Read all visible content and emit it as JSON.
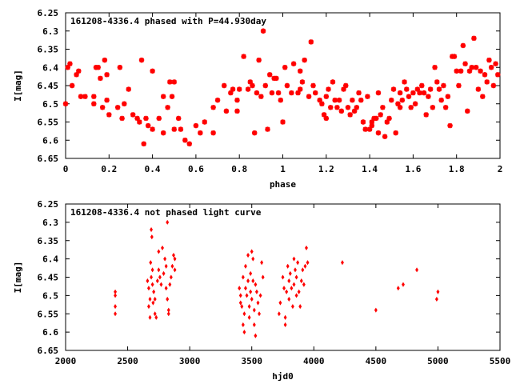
{
  "chart_data": [
    {
      "type": "scatter",
      "title": "161208-4336.4 phased with P=44.930day",
      "xlabel": "phase",
      "ylabel": "I[mag]",
      "xlim": [
        0,
        2
      ],
      "ylim": [
        6.25,
        6.65
      ],
      "y_inverted": true,
      "xticks": [
        "0",
        "0.2",
        "0.4",
        "0.6",
        "0.8",
        "1",
        "1.2",
        "1.4",
        "1.6",
        "1.8",
        "2"
      ],
      "yticks": [
        "6.25",
        "6.3",
        "6.35",
        "6.4",
        "6.45",
        "6.5",
        "6.55",
        "6.6",
        "6.65"
      ],
      "marker": "star",
      "color": "#ff0000",
      "points": [
        [
          0.0,
          6.5
        ],
        [
          0.01,
          6.4
        ],
        [
          0.02,
          6.39
        ],
        [
          0.03,
          6.45
        ],
        [
          0.05,
          6.42
        ],
        [
          0.06,
          6.41
        ],
        [
          0.07,
          6.48
        ],
        [
          0.09,
          6.48
        ],
        [
          0.13,
          6.5
        ],
        [
          0.13,
          6.48
        ],
        [
          0.14,
          6.4
        ],
        [
          0.15,
          6.4
        ],
        [
          0.16,
          6.43
        ],
        [
          0.17,
          6.51
        ],
        [
          0.18,
          6.38
        ],
        [
          0.19,
          6.42
        ],
        [
          0.19,
          6.49
        ],
        [
          0.2,
          6.53
        ],
        [
          0.24,
          6.51
        ],
        [
          0.25,
          6.4
        ],
        [
          0.26,
          6.54
        ],
        [
          0.27,
          6.5
        ],
        [
          0.29,
          6.46
        ],
        [
          0.31,
          6.53
        ],
        [
          0.33,
          6.54
        ],
        [
          0.34,
          6.55
        ],
        [
          0.35,
          6.38
        ],
        [
          0.36,
          6.61
        ],
        [
          0.37,
          6.54
        ],
        [
          0.38,
          6.56
        ],
        [
          0.4,
          6.57
        ],
        [
          0.4,
          6.41
        ],
        [
          0.43,
          6.54
        ],
        [
          0.45,
          6.58
        ],
        [
          0.45,
          6.48
        ],
        [
          0.47,
          6.51
        ],
        [
          0.48,
          6.44
        ],
        [
          0.49,
          6.48
        ],
        [
          0.5,
          6.44
        ],
        [
          0.5,
          6.57
        ],
        [
          0.52,
          6.54
        ],
        [
          0.53,
          6.57
        ],
        [
          0.55,
          6.6
        ],
        [
          0.57,
          6.61
        ],
        [
          0.6,
          6.56
        ],
        [
          0.62,
          6.58
        ],
        [
          0.64,
          6.55
        ],
        [
          0.68,
          6.58
        ],
        [
          0.68,
          6.51
        ],
        [
          0.7,
          6.49
        ],
        [
          0.73,
          6.45
        ],
        [
          0.74,
          6.52
        ],
        [
          0.76,
          6.47
        ],
        [
          0.77,
          6.46
        ],
        [
          0.79,
          6.49
        ],
        [
          0.79,
          6.52
        ],
        [
          0.8,
          6.46
        ],
        [
          0.82,
          6.37
        ],
        [
          0.84,
          6.46
        ],
        [
          0.85,
          6.44
        ],
        [
          0.86,
          6.45
        ],
        [
          0.87,
          6.58
        ],
        [
          0.88,
          6.47
        ],
        [
          0.89,
          6.38
        ],
        [
          0.9,
          6.48
        ],
        [
          0.91,
          6.3
        ],
        [
          0.92,
          6.45
        ],
        [
          0.93,
          6.57
        ],
        [
          0.94,
          6.42
        ],
        [
          0.95,
          6.47
        ],
        [
          0.96,
          6.43
        ],
        [
          0.97,
          6.43
        ],
        [
          0.98,
          6.47
        ],
        [
          0.99,
          6.49
        ],
        [
          1.0,
          6.55
        ],
        [
          1.01,
          6.4
        ],
        [
          1.02,
          6.45
        ],
        [
          1.04,
          6.47
        ],
        [
          1.05,
          6.39
        ],
        [
          1.07,
          6.47
        ],
        [
          1.08,
          6.41
        ],
        [
          1.08,
          6.46
        ],
        [
          1.09,
          6.44
        ],
        [
          1.1,
          6.38
        ],
        [
          1.12,
          6.48
        ],
        [
          1.13,
          6.33
        ],
        [
          1.14,
          6.45
        ],
        [
          1.15,
          6.47
        ],
        [
          1.17,
          6.49
        ],
        [
          1.18,
          6.5
        ],
        [
          1.19,
          6.53
        ],
        [
          1.2,
          6.54
        ],
        [
          1.2,
          6.48
        ],
        [
          1.21,
          6.46
        ],
        [
          1.22,
          6.51
        ],
        [
          1.23,
          6.44
        ],
        [
          1.24,
          6.49
        ],
        [
          1.25,
          6.51
        ],
        [
          1.26,
          6.49
        ],
        [
          1.27,
          6.52
        ],
        [
          1.28,
          6.46
        ],
        [
          1.29,
          6.45
        ],
        [
          1.3,
          6.51
        ],
        [
          1.31,
          6.53
        ],
        [
          1.32,
          6.49
        ],
        [
          1.33,
          6.52
        ],
        [
          1.34,
          6.51
        ],
        [
          1.35,
          6.47
        ],
        [
          1.36,
          6.49
        ],
        [
          1.37,
          6.55
        ],
        [
          1.38,
          6.57
        ],
        [
          1.39,
          6.48
        ],
        [
          1.4,
          6.57
        ],
        [
          1.41,
          6.55
        ],
        [
          1.41,
          6.56
        ],
        [
          1.42,
          6.54
        ],
        [
          1.43,
          6.54
        ],
        [
          1.44,
          6.47
        ],
        [
          1.44,
          6.58
        ],
        [
          1.45,
          6.53
        ],
        [
          1.46,
          6.51
        ],
        [
          1.47,
          6.59
        ],
        [
          1.48,
          6.55
        ],
        [
          1.49,
          6.54
        ],
        [
          1.5,
          6.49
        ],
        [
          1.51,
          6.46
        ],
        [
          1.52,
          6.58
        ],
        [
          1.53,
          6.5
        ],
        [
          1.54,
          6.51
        ],
        [
          1.54,
          6.47
        ],
        [
          1.55,
          6.49
        ],
        [
          1.56,
          6.44
        ],
        [
          1.57,
          6.46
        ],
        [
          1.58,
          6.48
        ],
        [
          1.59,
          6.51
        ],
        [
          1.6,
          6.47
        ],
        [
          1.61,
          6.5
        ],
        [
          1.62,
          6.46
        ],
        [
          1.63,
          6.47
        ],
        [
          1.64,
          6.45
        ],
        [
          1.65,
          6.47
        ],
        [
          1.66,
          6.53
        ],
        [
          1.67,
          6.48
        ],
        [
          1.68,
          6.46
        ],
        [
          1.69,
          6.51
        ],
        [
          1.7,
          6.4
        ],
        [
          1.71,
          6.44
        ],
        [
          1.72,
          6.46
        ],
        [
          1.73,
          6.49
        ],
        [
          1.74,
          6.45
        ],
        [
          1.75,
          6.51
        ],
        [
          1.76,
          6.48
        ],
        [
          1.77,
          6.56
        ],
        [
          1.78,
          6.37
        ],
        [
          1.79,
          6.37
        ],
        [
          1.8,
          6.41
        ],
        [
          1.81,
          6.45
        ],
        [
          1.82,
          6.41
        ],
        [
          1.83,
          6.34
        ],
        [
          1.84,
          6.39
        ],
        [
          1.85,
          6.52
        ],
        [
          1.86,
          6.41
        ],
        [
          1.87,
          6.4
        ],
        [
          1.88,
          6.32
        ],
        [
          1.89,
          6.4
        ],
        [
          1.9,
          6.46
        ],
        [
          1.91,
          6.41
        ],
        [
          1.92,
          6.48
        ],
        [
          1.93,
          6.42
        ],
        [
          1.94,
          6.44
        ],
        [
          1.95,
          6.38
        ],
        [
          1.96,
          6.4
        ],
        [
          1.97,
          6.45
        ],
        [
          1.98,
          6.39
        ],
        [
          1.99,
          6.42
        ]
      ]
    },
    {
      "type": "scatter",
      "title": "161208-4336.4 not phased light curve",
      "xlabel": "hjd0",
      "ylabel": "I[mag]",
      "xlim": [
        2000,
        5500
      ],
      "ylim": [
        6.25,
        6.65
      ],
      "y_inverted": true,
      "xticks": [
        "2000",
        "2500",
        "3000",
        "3500",
        "4000",
        "4500",
        "5000",
        "5500"
      ],
      "yticks": [
        "6.25",
        "6.3",
        "6.35",
        "6.4",
        "6.45",
        "6.5",
        "6.55",
        "6.6",
        "6.65"
      ],
      "marker": "diamond",
      "color": "#ff0000",
      "points": [
        [
          2400,
          6.49
        ],
        [
          2400,
          6.5
        ],
        [
          2400,
          6.53
        ],
        [
          2400,
          6.55
        ],
        [
          2660,
          6.46
        ],
        [
          2670,
          6.48
        ],
        [
          2670,
          6.53
        ],
        [
          2680,
          6.51
        ],
        [
          2680,
          6.56
        ],
        [
          2685,
          6.41
        ],
        [
          2690,
          6.45
        ],
        [
          2690,
          6.32
        ],
        [
          2695,
          6.34
        ],
        [
          2700,
          6.43
        ],
        [
          2700,
          6.47
        ],
        [
          2705,
          6.52
        ],
        [
          2710,
          6.49
        ],
        [
          2720,
          6.55
        ],
        [
          2720,
          6.51
        ],
        [
          2730,
          6.56
        ],
        [
          2740,
          6.46
        ],
        [
          2750,
          6.43
        ],
        [
          2750,
          6.38
        ],
        [
          2760,
          6.45
        ],
        [
          2770,
          6.47
        ],
        [
          2780,
          6.37
        ],
        [
          2790,
          6.44
        ],
        [
          2800,
          6.4
        ],
        [
          2810,
          6.42
        ],
        [
          2810,
          6.48
        ],
        [
          2820,
          6.3
        ],
        [
          2820,
          6.51
        ],
        [
          2830,
          6.55
        ],
        [
          2830,
          6.54
        ],
        [
          2840,
          6.47
        ],
        [
          2850,
          6.45
        ],
        [
          2860,
          6.42
        ],
        [
          2870,
          6.39
        ],
        [
          2880,
          6.43
        ],
        [
          2880,
          6.4
        ],
        [
          3400,
          6.48
        ],
        [
          3410,
          6.52
        ],
        [
          3410,
          6.5
        ],
        [
          3420,
          6.53
        ],
        [
          3430,
          6.58
        ],
        [
          3430,
          6.45
        ],
        [
          3440,
          6.6
        ],
        [
          3440,
          6.55
        ],
        [
          3450,
          6.42
        ],
        [
          3450,
          6.48
        ],
        [
          3460,
          6.5
        ],
        [
          3470,
          6.39
        ],
        [
          3470,
          6.46
        ],
        [
          3480,
          6.53
        ],
        [
          3480,
          6.56
        ],
        [
          3490,
          6.44
        ],
        [
          3490,
          6.49
        ],
        [
          3500,
          6.38
        ],
        [
          3500,
          6.51
        ],
        [
          3510,
          6.4
        ],
        [
          3510,
          6.46
        ],
        [
          3520,
          6.54
        ],
        [
          3520,
          6.58
        ],
        [
          3530,
          6.61
        ],
        [
          3530,
          6.47
        ],
        [
          3540,
          6.49
        ],
        [
          3550,
          6.52
        ],
        [
          3560,
          6.55
        ],
        [
          3570,
          6.5
        ],
        [
          3580,
          6.41
        ],
        [
          3590,
          6.45
        ],
        [
          3720,
          6.55
        ],
        [
          3730,
          6.52
        ],
        [
          3750,
          6.45
        ],
        [
          3760,
          6.48
        ],
        [
          3770,
          6.58
        ],
        [
          3770,
          6.56
        ],
        [
          3780,
          6.49
        ],
        [
          3790,
          6.42
        ],
        [
          3800,
          6.46
        ],
        [
          3800,
          6.51
        ],
        [
          3810,
          6.44
        ],
        [
          3820,
          6.48
        ],
        [
          3830,
          6.53
        ],
        [
          3840,
          6.4
        ],
        [
          3840,
          6.47
        ],
        [
          3850,
          6.43
        ],
        [
          3860,
          6.5
        ],
        [
          3860,
          6.45
        ],
        [
          3870,
          6.41
        ],
        [
          3880,
          6.49
        ],
        [
          3890,
          6.53
        ],
        [
          3900,
          6.46
        ],
        [
          3910,
          6.43
        ],
        [
          3920,
          6.47
        ],
        [
          3930,
          6.42
        ],
        [
          3940,
          6.37
        ],
        [
          3950,
          6.41
        ],
        [
          4230,
          6.41
        ],
        [
          4500,
          6.54
        ],
        [
          4680,
          6.48
        ],
        [
          4720,
          6.47
        ],
        [
          4830,
          6.43
        ],
        [
          4990,
          6.51
        ],
        [
          5000,
          6.49
        ]
      ]
    }
  ]
}
